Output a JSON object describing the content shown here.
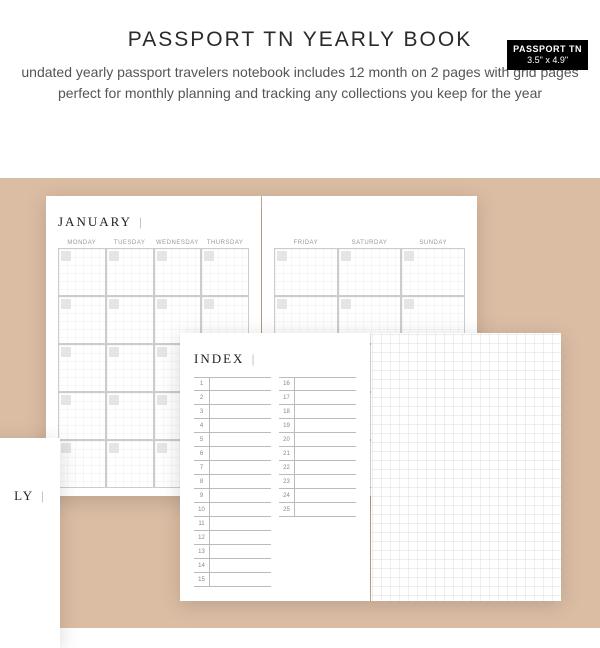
{
  "badge": {
    "line1": "PASSPORT TN",
    "line2": "3.5\" x 4.9\""
  },
  "title": "PASSPORT TN YEARLY BOOK",
  "description": "undated yearly passport travelers notebook includes 12 month on 2 pages with grid pages perfect for monthly planning and tracking any collections you keep for the year",
  "top_spread": {
    "month": "JANUARY",
    "left_days": [
      "MONDAY",
      "TUESDAY",
      "WEDNESDAY",
      "THURSDAY"
    ],
    "right_days": [
      "FRIDAY",
      "SATURDAY",
      "SUNDAY"
    ],
    "rows": 5
  },
  "left_partial": {
    "label": "LY"
  },
  "bottom_spread": {
    "title": "INDEX",
    "col1": [
      1,
      2,
      3,
      4,
      5,
      6,
      7,
      8,
      9,
      10,
      11,
      12,
      13,
      14,
      15
    ],
    "col2": [
      16,
      17,
      18,
      19,
      20,
      21,
      22,
      23,
      24,
      25
    ]
  },
  "colors": {
    "canvas": "#dbbda4",
    "page": "#ffffff",
    "grid_line": "#dddddd",
    "cell_border": "#cccccc",
    "letter_box": "#e5e5e5",
    "text_dark": "#2a2a2a",
    "text_muted": "#555555"
  }
}
